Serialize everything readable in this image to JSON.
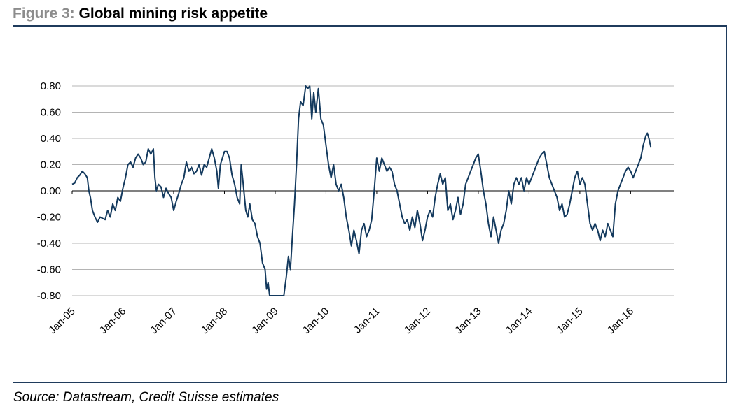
{
  "figure": {
    "prefix": "Figure 3:",
    "title": "Global mining risk appetite",
    "source": "Source: Datastream, Credit Suisse estimates"
  },
  "colors": {
    "line": "#143a5e",
    "grid": "#b4b4b4",
    "rule": "#1f3b5c"
  },
  "chart_data": {
    "type": "line",
    "title": "Global mining risk appetite",
    "xlabel": "",
    "ylabel": "",
    "ylim": [
      -0.8,
      0.8
    ],
    "grid": true,
    "y_ticks": [
      "0.80",
      "0.60",
      "0.40",
      "0.20",
      "0.00",
      "-0.20",
      "-0.40",
      "-0.60",
      "-0.80"
    ],
    "y_tick_values": [
      0.8,
      0.6,
      0.4,
      0.2,
      0.0,
      -0.2,
      -0.4,
      -0.6,
      -0.8
    ],
    "x_ticks": [
      "Jan-05",
      "Jan-06",
      "Jan-07",
      "Jan-08",
      "Jan-09",
      "Jan-10",
      "Jan-11",
      "Jan-12",
      "Jan-13",
      "Jan-14",
      "Jan-15",
      "Jan-16"
    ],
    "x_tick_values": [
      2005,
      2006,
      2007,
      2008,
      2009,
      2010,
      2011,
      2012,
      2013,
      2014,
      2015,
      2016
    ],
    "xlim": [
      2005,
      2016.85
    ],
    "series": [
      {
        "name": "Global mining risk appetite",
        "points": [
          [
            2005.0,
            0.05
          ],
          [
            2005.05,
            0.06
          ],
          [
            2005.1,
            0.1
          ],
          [
            2005.15,
            0.12
          ],
          [
            2005.2,
            0.15
          ],
          [
            2005.25,
            0.13
          ],
          [
            2005.3,
            0.1
          ],
          [
            2005.33,
            0.0
          ],
          [
            2005.36,
            -0.05
          ],
          [
            2005.4,
            -0.15
          ],
          [
            2005.45,
            -0.2
          ],
          [
            2005.5,
            -0.24
          ],
          [
            2005.55,
            -0.2
          ],
          [
            2005.6,
            -0.21
          ],
          [
            2005.65,
            -0.22
          ],
          [
            2005.7,
            -0.15
          ],
          [
            2005.75,
            -0.2
          ],
          [
            2005.8,
            -0.1
          ],
          [
            2005.85,
            -0.15
          ],
          [
            2005.9,
            -0.05
          ],
          [
            2005.95,
            -0.08
          ],
          [
            2006.0,
            0.02
          ],
          [
            2006.05,
            0.1
          ],
          [
            2006.1,
            0.2
          ],
          [
            2006.15,
            0.22
          ],
          [
            2006.2,
            0.18
          ],
          [
            2006.25,
            0.25
          ],
          [
            2006.3,
            0.28
          ],
          [
            2006.35,
            0.25
          ],
          [
            2006.4,
            0.2
          ],
          [
            2006.45,
            0.22
          ],
          [
            2006.5,
            0.32
          ],
          [
            2006.55,
            0.28
          ],
          [
            2006.6,
            0.32
          ],
          [
            2006.63,
            0.1
          ],
          [
            2006.66,
            0.0
          ],
          [
            2006.7,
            0.05
          ],
          [
            2006.75,
            0.03
          ],
          [
            2006.8,
            -0.05
          ],
          [
            2006.85,
            0.02
          ],
          [
            2006.9,
            -0.02
          ],
          [
            2006.95,
            -0.05
          ],
          [
            2007.0,
            -0.15
          ],
          [
            2007.05,
            -0.08
          ],
          [
            2007.1,
            -0.02
          ],
          [
            2007.15,
            0.05
          ],
          [
            2007.2,
            0.1
          ],
          [
            2007.25,
            0.22
          ],
          [
            2007.3,
            0.15
          ],
          [
            2007.35,
            0.18
          ],
          [
            2007.4,
            0.13
          ],
          [
            2007.45,
            0.15
          ],
          [
            2007.5,
            0.2
          ],
          [
            2007.55,
            0.12
          ],
          [
            2007.6,
            0.2
          ],
          [
            2007.65,
            0.18
          ],
          [
            2007.7,
            0.25
          ],
          [
            2007.75,
            0.32
          ],
          [
            2007.8,
            0.25
          ],
          [
            2007.85,
            0.15
          ],
          [
            2007.88,
            0.02
          ],
          [
            2007.92,
            0.2
          ],
          [
            2007.96,
            0.25
          ],
          [
            2008.0,
            0.3
          ],
          [
            2008.05,
            0.3
          ],
          [
            2008.1,
            0.25
          ],
          [
            2008.15,
            0.12
          ],
          [
            2008.2,
            0.05
          ],
          [
            2008.25,
            -0.05
          ],
          [
            2008.3,
            -0.1
          ],
          [
            2008.33,
            0.2
          ],
          [
            2008.37,
            0.05
          ],
          [
            2008.42,
            -0.15
          ],
          [
            2008.46,
            -0.2
          ],
          [
            2008.5,
            -0.1
          ],
          [
            2008.55,
            -0.22
          ],
          [
            2008.6,
            -0.25
          ],
          [
            2008.65,
            -0.35
          ],
          [
            2008.7,
            -0.4
          ],
          [
            2008.75,
            -0.55
          ],
          [
            2008.8,
            -0.6
          ],
          [
            2008.83,
            -0.75
          ],
          [
            2008.86,
            -0.7
          ],
          [
            2008.89,
            -0.8
          ],
          [
            2009.17,
            -0.8
          ],
          [
            2009.22,
            -0.65
          ],
          [
            2009.26,
            -0.5
          ],
          [
            2009.3,
            -0.6
          ],
          [
            2009.33,
            -0.4
          ],
          [
            2009.38,
            -0.1
          ],
          [
            2009.42,
            0.2
          ],
          [
            2009.46,
            0.55
          ],
          [
            2009.5,
            0.68
          ],
          [
            2009.55,
            0.65
          ],
          [
            2009.6,
            0.8
          ],
          [
            2009.64,
            0.78
          ],
          [
            2009.68,
            0.8
          ],
          [
            2009.72,
            0.55
          ],
          [
            2009.76,
            0.75
          ],
          [
            2009.8,
            0.6
          ],
          [
            2009.85,
            0.78
          ],
          [
            2009.9,
            0.55
          ],
          [
            2009.95,
            0.5
          ],
          [
            2010.0,
            0.35
          ],
          [
            2010.05,
            0.2
          ],
          [
            2010.1,
            0.1
          ],
          [
            2010.15,
            0.2
          ],
          [
            2010.2,
            0.05
          ],
          [
            2010.25,
            0.0
          ],
          [
            2010.3,
            0.05
          ],
          [
            2010.35,
            -0.05
          ],
          [
            2010.4,
            -0.2
          ],
          [
            2010.45,
            -0.3
          ],
          [
            2010.5,
            -0.42
          ],
          [
            2010.55,
            -0.3
          ],
          [
            2010.6,
            -0.38
          ],
          [
            2010.65,
            -0.48
          ],
          [
            2010.7,
            -0.3
          ],
          [
            2010.75,
            -0.25
          ],
          [
            2010.8,
            -0.35
          ],
          [
            2010.85,
            -0.3
          ],
          [
            2010.9,
            -0.22
          ],
          [
            2010.95,
            0.0
          ],
          [
            2011.0,
            0.25
          ],
          [
            2011.05,
            0.15
          ],
          [
            2011.1,
            0.25
          ],
          [
            2011.15,
            0.2
          ],
          [
            2011.2,
            0.15
          ],
          [
            2011.25,
            0.18
          ],
          [
            2011.3,
            0.15
          ],
          [
            2011.35,
            0.05
          ],
          [
            2011.4,
            0.0
          ],
          [
            2011.45,
            -0.1
          ],
          [
            2011.5,
            -0.2
          ],
          [
            2011.55,
            -0.25
          ],
          [
            2011.6,
            -0.22
          ],
          [
            2011.65,
            -0.3
          ],
          [
            2011.7,
            -0.2
          ],
          [
            2011.75,
            -0.28
          ],
          [
            2011.8,
            -0.15
          ],
          [
            2011.85,
            -0.25
          ],
          [
            2011.9,
            -0.38
          ],
          [
            2011.95,
            -0.3
          ],
          [
            2012.0,
            -0.2
          ],
          [
            2012.05,
            -0.15
          ],
          [
            2012.1,
            -0.2
          ],
          [
            2012.15,
            -0.05
          ],
          [
            2012.2,
            0.05
          ],
          [
            2012.25,
            0.13
          ],
          [
            2012.3,
            0.05
          ],
          [
            2012.35,
            0.1
          ],
          [
            2012.4,
            -0.15
          ],
          [
            2012.45,
            -0.1
          ],
          [
            2012.5,
            -0.22
          ],
          [
            2012.55,
            -0.15
          ],
          [
            2012.6,
            -0.05
          ],
          [
            2012.65,
            -0.18
          ],
          [
            2012.7,
            -0.1
          ],
          [
            2012.75,
            0.05
          ],
          [
            2012.8,
            0.1
          ],
          [
            2012.85,
            0.15
          ],
          [
            2012.9,
            0.2
          ],
          [
            2012.95,
            0.25
          ],
          [
            2013.0,
            0.28
          ],
          [
            2013.05,
            0.15
          ],
          [
            2013.1,
            0.0
          ],
          [
            2013.15,
            -0.1
          ],
          [
            2013.2,
            -0.25
          ],
          [
            2013.25,
            -0.35
          ],
          [
            2013.3,
            -0.2
          ],
          [
            2013.35,
            -0.3
          ],
          [
            2013.4,
            -0.4
          ],
          [
            2013.45,
            -0.3
          ],
          [
            2013.5,
            -0.25
          ],
          [
            2013.55,
            -0.15
          ],
          [
            2013.6,
            0.0
          ],
          [
            2013.65,
            -0.1
          ],
          [
            2013.7,
            0.05
          ],
          [
            2013.75,
            0.1
          ],
          [
            2013.8,
            0.05
          ],
          [
            2013.85,
            0.1
          ],
          [
            2013.9,
            0.0
          ],
          [
            2013.95,
            0.1
          ],
          [
            2014.0,
            0.05
          ],
          [
            2014.05,
            0.1
          ],
          [
            2014.1,
            0.15
          ],
          [
            2014.15,
            0.2
          ],
          [
            2014.2,
            0.25
          ],
          [
            2014.25,
            0.28
          ],
          [
            2014.3,
            0.3
          ],
          [
            2014.35,
            0.2
          ],
          [
            2014.4,
            0.1
          ],
          [
            2014.45,
            0.05
          ],
          [
            2014.5,
            0.0
          ],
          [
            2014.55,
            -0.05
          ],
          [
            2014.6,
            -0.15
          ],
          [
            2014.65,
            -0.1
          ],
          [
            2014.7,
            -0.2
          ],
          [
            2014.75,
            -0.18
          ],
          [
            2014.8,
            -0.1
          ],
          [
            2014.85,
            0.0
          ],
          [
            2014.9,
            0.1
          ],
          [
            2014.95,
            0.15
          ],
          [
            2015.0,
            0.05
          ],
          [
            2015.05,
            0.1
          ],
          [
            2015.1,
            0.05
          ],
          [
            2015.15,
            -0.1
          ],
          [
            2015.2,
            -0.25
          ],
          [
            2015.25,
            -0.3
          ],
          [
            2015.3,
            -0.25
          ],
          [
            2015.35,
            -0.3
          ],
          [
            2015.4,
            -0.38
          ],
          [
            2015.45,
            -0.3
          ],
          [
            2015.5,
            -0.35
          ],
          [
            2015.55,
            -0.25
          ],
          [
            2015.6,
            -0.3
          ],
          [
            2015.65,
            -0.35
          ],
          [
            2015.7,
            -0.1
          ],
          [
            2015.75,
            0.0
          ],
          [
            2015.8,
            0.05
          ],
          [
            2015.85,
            0.1
          ],
          [
            2015.9,
            0.15
          ],
          [
            2015.95,
            0.18
          ],
          [
            2016.0,
            0.15
          ],
          [
            2016.05,
            0.1
          ],
          [
            2016.1,
            0.15
          ],
          [
            2016.15,
            0.2
          ],
          [
            2016.2,
            0.25
          ],
          [
            2016.25,
            0.35
          ],
          [
            2016.3,
            0.42
          ],
          [
            2016.33,
            0.44
          ],
          [
            2016.36,
            0.4
          ],
          [
            2016.4,
            0.33
          ]
        ]
      }
    ]
  }
}
